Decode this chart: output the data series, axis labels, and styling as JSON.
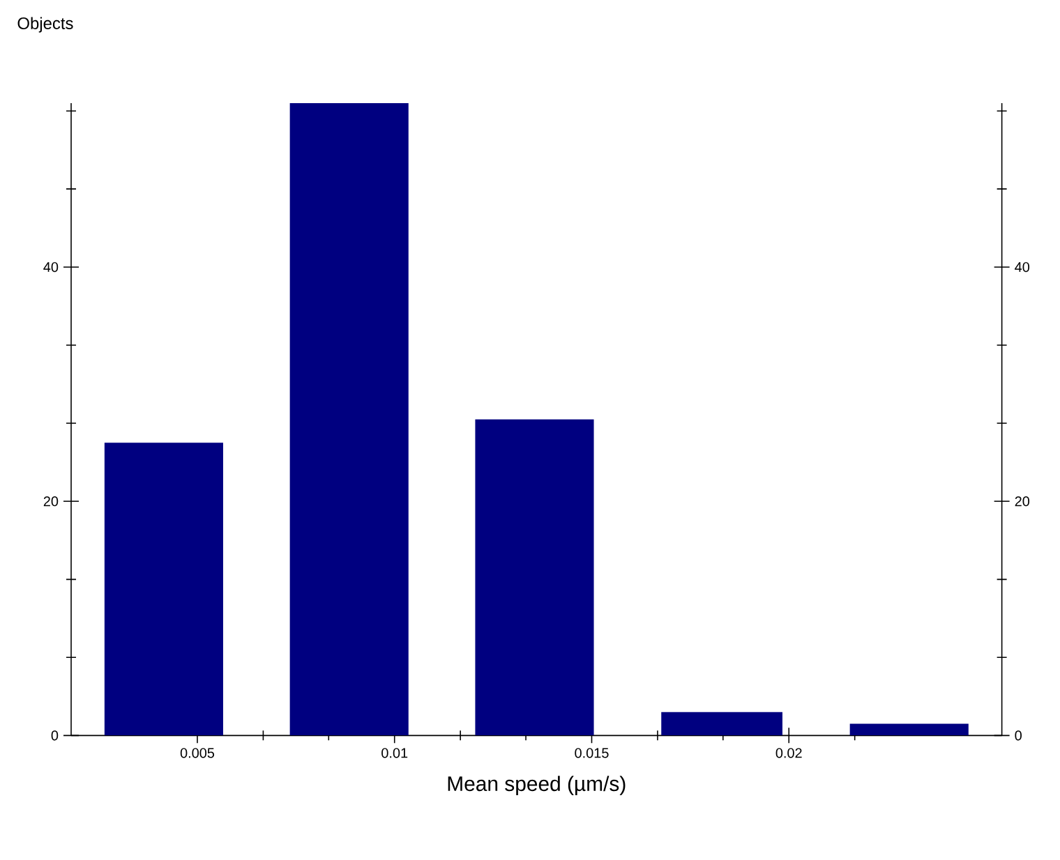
{
  "chart_data": {
    "type": "histogram",
    "ylabel": "Objects",
    "xlabel": "Mean speed (µm/s)",
    "bins": [
      0.0018,
      0.0065,
      0.0112,
      0.0159,
      0.0207,
      0.0254
    ],
    "values": [
      25,
      54,
      27,
      2,
      1
    ],
    "color": "#000080",
    "xlim": [
      0.0018,
      0.0254
    ],
    "xticks": [
      0.005,
      {
        "value": 0.00667,
        "label": null
      },
      {
        "value": 0.00833,
        "label": null
      },
      0.01,
      {
        "value": 0.01167,
        "label": null
      },
      {
        "value": 0.01333,
        "label": null
      },
      0.015,
      {
        "value": 0.01667,
        "label": null
      },
      {
        "value": 0.01833,
        "label": null
      },
      0.02,
      {
        "value": 0.02167,
        "label": null
      }
    ],
    "ylim": [
      0,
      54
    ],
    "yticks": [
      0,
      {
        "value": 6.67,
        "label": null
      },
      {
        "value": 13.33,
        "label": null
      },
      20,
      {
        "value": 26.67,
        "label": null
      },
      {
        "value": 33.33,
        "label": null
      },
      40,
      {
        "value": 46.67,
        "label": null
      },
      {
        "value": 53.33,
        "label": null
      }
    ],
    "y2lim": [
      0,
      54
    ],
    "y2ticks": [
      0,
      {
        "value": 6.67,
        "label": null
      },
      {
        "value": 13.33,
        "label": null
      },
      20,
      {
        "value": 26.67,
        "label": null
      },
      {
        "value": 33.33,
        "label": null
      },
      40,
      {
        "value": 46.67,
        "label": null
      },
      {
        "value": 53.33,
        "label": null
      }
    ]
  }
}
